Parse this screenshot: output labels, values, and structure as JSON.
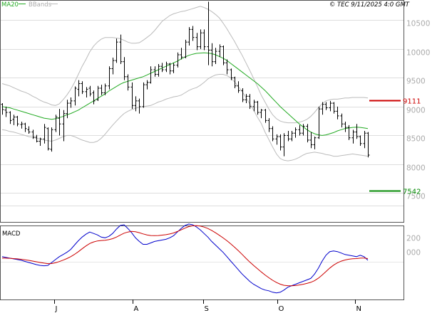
{
  "header": {
    "legend_ma": "MA20",
    "legend_bands": "BBands",
    "copyright": "© TEC 9/11/2025 4:0 GMT"
  },
  "colors": {
    "ma": "#22aa22",
    "bands": "#bbbbbb",
    "bars": "#000000",
    "resistance": "#cc0000",
    "support": "#008800",
    "macd": "#0000cc",
    "signal": "#cc0000",
    "grid": "#dddddd"
  },
  "chart_data": [
    {
      "type": "ohlc",
      "title": "",
      "x_ticks": [
        "J",
        "A",
        "S",
        "O",
        "N"
      ],
      "y_ticks": [
        {
          "v": 10500,
          "label": "10500"
        },
        {
          "v": 10000,
          "label": "10000"
        },
        {
          "v": 9500,
          "label": "9500"
        },
        {
          "v": 9000,
          "label": "9000"
        },
        {
          "v": 8500,
          "label": "8500"
        },
        {
          "v": 8000,
          "label": "8000"
        },
        {
          "v": 7500,
          "label": "7500"
        }
      ],
      "ylim": [
        7000,
        10850
      ],
      "levels": [
        {
          "name": "resistance",
          "value": 9111,
          "label": "9111"
        },
        {
          "name": "support",
          "value": 7542,
          "label": "7542"
        }
      ],
      "series_ma": [
        9000,
        8990,
        8980,
        8960,
        8940,
        8920,
        8900,
        8880,
        8860,
        8840,
        8820,
        8800,
        8790,
        8780,
        8790,
        8810,
        8830,
        8860,
        8880,
        8910,
        8940,
        8980,
        9020,
        9060,
        9100,
        9140,
        9180,
        9220,
        9270,
        9310,
        9350,
        9390,
        9420,
        9440,
        9460,
        9480,
        9500,
        9520,
        9550,
        9580,
        9610,
        9640,
        9670,
        9700,
        9730,
        9760,
        9790,
        9830,
        9860,
        9890,
        9910,
        9925,
        9930,
        9935,
        9930,
        9920,
        9900,
        9870,
        9840,
        9800,
        9750,
        9700,
        9650,
        9600,
        9550,
        9500,
        9450,
        9400,
        9340,
        9280,
        9210,
        9140,
        9070,
        9000,
        8940,
        8880,
        8820,
        8760,
        8700,
        8650,
        8600,
        8560,
        8530,
        8510,
        8500,
        8510,
        8530,
        8550,
        8580,
        8600,
        8620,
        8630,
        8640,
        8645,
        8640,
        8630,
        8620
      ],
      "series_upper": [
        9400,
        9380,
        9360,
        9330,
        9300,
        9270,
        9250,
        9220,
        9180,
        9150,
        9110,
        9080,
        9060,
        9030,
        9020,
        9050,
        9120,
        9200,
        9300,
        9420,
        9560,
        9700,
        9820,
        9950,
        10050,
        10120,
        10170,
        10200,
        10200,
        10200,
        10190,
        10180,
        10150,
        10120,
        10100,
        10100,
        10110,
        10150,
        10200,
        10250,
        10320,
        10400,
        10480,
        10530,
        10580,
        10610,
        10630,
        10650,
        10660,
        10680,
        10700,
        10720,
        10740,
        10720,
        10690,
        10650,
        10600,
        10540,
        10450,
        10350,
        10240,
        10130,
        10010,
        9890,
        9760,
        9630,
        9490,
        9350,
        9200,
        9080,
        8960,
        8860,
        8790,
        8750,
        8730,
        8720,
        8720,
        8720,
        8730,
        8750,
        8780,
        8830,
        8900,
        8980,
        9050,
        9100,
        9120,
        9130,
        9130,
        9140,
        9150,
        9150,
        9160,
        9160,
        9160,
        9160,
        9150
      ],
      "series_lower": [
        8600,
        8590,
        8570,
        8560,
        8540,
        8520,
        8500,
        8480,
        8470,
        8450,
        8440,
        8420,
        8410,
        8400,
        8420,
        8450,
        8480,
        8500,
        8500,
        8480,
        8450,
        8420,
        8400,
        8380,
        8380,
        8400,
        8450,
        8520,
        8600,
        8680,
        8750,
        8820,
        8880,
        8920,
        8950,
        8970,
        8990,
        9000,
        9010,
        9020,
        9050,
        9080,
        9100,
        9130,
        9150,
        9170,
        9180,
        9200,
        9240,
        9280,
        9310,
        9330,
        9370,
        9420,
        9480,
        9520,
        9550,
        9560,
        9560,
        9540,
        9500,
        9430,
        9350,
        9260,
        9160,
        9050,
        8940,
        8820,
        8710,
        8560,
        8430,
        8300,
        8180,
        8100,
        8070,
        8060,
        8070,
        8090,
        8120,
        8160,
        8190,
        8200,
        8210,
        8200,
        8190,
        8170,
        8160,
        8140,
        8140,
        8150,
        8160,
        8170,
        8180,
        8170,
        8160,
        8150,
        8140
      ],
      "bars": [
        [
          9040,
          9060,
          8860,
          8950
        ],
        [
          8940,
          9000,
          8820,
          8900
        ],
        [
          8900,
          8920,
          8700,
          8760
        ],
        [
          8780,
          8860,
          8680,
          8820
        ],
        [
          8820,
          8840,
          8660,
          8700
        ],
        [
          8690,
          8740,
          8620,
          8700
        ],
        [
          8700,
          8720,
          8560,
          8620
        ],
        [
          8600,
          8660,
          8530,
          8560
        ],
        [
          8560,
          8600,
          8440,
          8470
        ],
        [
          8470,
          8510,
          8380,
          8400
        ],
        [
          8400,
          8460,
          8320,
          8440
        ],
        [
          8440,
          8700,
          8360,
          8640
        ],
        [
          8620,
          8640,
          8240,
          8270
        ],
        [
          8260,
          8640,
          8220,
          8600
        ],
        [
          8600,
          8860,
          8560,
          8820
        ],
        [
          8800,
          8960,
          8500,
          8700
        ],
        [
          8700,
          8940,
          8400,
          8880
        ],
        [
          8880,
          9120,
          8800,
          9060
        ],
        [
          9060,
          9160,
          8980,
          9100
        ],
        [
          9100,
          9350,
          9020,
          9320
        ],
        [
          9300,
          9460,
          9180,
          9400
        ],
        [
          9400,
          9440,
          9220,
          9260
        ],
        [
          9260,
          9340,
          9160,
          9300
        ],
        [
          9320,
          9360,
          9180,
          9220
        ],
        [
          9240,
          9280,
          9040,
          9100
        ],
        [
          9120,
          9360,
          9100,
          9320
        ],
        [
          9320,
          9380,
          9200,
          9240
        ],
        [
          9240,
          9400,
          9200,
          9360
        ],
        [
          9360,
          9700,
          9300,
          9660
        ],
        [
          9660,
          9850,
          9560,
          9800
        ],
        [
          9800,
          10180,
          9760,
          10120
        ],
        [
          10120,
          10250,
          9740,
          9780
        ],
        [
          9780,
          9860,
          9460,
          9520
        ],
        [
          9520,
          9560,
          9280,
          9340
        ],
        [
          9340,
          9420,
          8960,
          9020
        ],
        [
          9020,
          9180,
          8920,
          9100
        ],
        [
          9100,
          9140,
          8880,
          9000
        ],
        [
          9000,
          9420,
          8980,
          9380
        ],
        [
          9380,
          9460,
          9300,
          9420
        ],
        [
          9420,
          9700,
          9400,
          9640
        ],
        [
          9640,
          9700,
          9520,
          9560
        ],
        [
          9560,
          9740,
          9520,
          9700
        ],
        [
          9700,
          9760,
          9600,
          9640
        ],
        [
          9640,
          9780,
          9600,
          9740
        ],
        [
          9740,
          9760,
          9560,
          9620
        ],
        [
          9620,
          9760,
          9580,
          9720
        ],
        [
          9720,
          9940,
          9680,
          9900
        ],
        [
          9900,
          10020,
          9820,
          9860
        ],
        [
          9860,
          10160,
          9840,
          10120
        ],
        [
          10120,
          10380,
          10060,
          10340
        ],
        [
          10340,
          10400,
          10140,
          10200
        ],
        [
          10200,
          10280,
          9980,
          10040
        ],
        [
          10040,
          10340,
          10000,
          10280
        ],
        [
          10280,
          10340,
          9980,
          10040
        ],
        [
          10040,
          10820,
          9720,
          9980
        ],
        [
          9980,
          10100,
          9700,
          9780
        ],
        [
          9780,
          10020,
          9740,
          9960
        ],
        [
          9960,
          10080,
          9860,
          10040
        ],
        [
          10040,
          10060,
          9720,
          9760
        ],
        [
          9760,
          9820,
          9560,
          9640
        ],
        [
          9640,
          9660,
          9460,
          9500
        ],
        [
          9500,
          9520,
          9320,
          9360
        ],
        [
          9360,
          9440,
          9240,
          9280
        ],
        [
          9280,
          9320,
          9080,
          9120
        ],
        [
          9120,
          9220,
          9060,
          9180
        ],
        [
          9180,
          9220,
          8960,
          9000
        ],
        [
          9000,
          9120,
          8920,
          9080
        ],
        [
          9080,
          9100,
          8860,
          8900
        ],
        [
          8900,
          8960,
          8800,
          8940
        ],
        [
          8940,
          8960,
          8720,
          8760
        ],
        [
          8760,
          8800,
          8560,
          8620
        ],
        [
          8620,
          8660,
          8400,
          8440
        ],
        [
          8440,
          8520,
          8340,
          8480
        ],
        [
          8480,
          8520,
          8240,
          8300
        ],
        [
          8300,
          8540,
          8140,
          8500
        ],
        [
          8500,
          8580,
          8400,
          8440
        ],
        [
          8440,
          8580,
          8400,
          8540
        ],
        [
          8540,
          8640,
          8460,
          8600
        ],
        [
          8600,
          8680,
          8500,
          8540
        ],
        [
          8540,
          8700,
          8500,
          8660
        ],
        [
          8660,
          8700,
          8380,
          8420
        ],
        [
          8420,
          8560,
          8280,
          8340
        ],
        [
          8340,
          8480,
          8260,
          8460
        ],
        [
          8460,
          9000,
          8440,
          8960
        ],
        [
          8960,
          9080,
          8860,
          9040
        ],
        [
          9040,
          9080,
          8940,
          8980
        ],
        [
          8980,
          9100,
          8920,
          9060
        ],
        [
          9060,
          9080,
          8880,
          8920
        ],
        [
          8920,
          9000,
          8780,
          8840
        ],
        [
          8840,
          8880,
          8640,
          8700
        ],
        [
          8700,
          8740,
          8560,
          8640
        ],
        [
          8640,
          8680,
          8420,
          8460
        ],
        [
          8460,
          8600,
          8360,
          8560
        ],
        [
          8560,
          8700,
          8440,
          8480
        ],
        [
          8480,
          8500,
          8320,
          8360
        ],
        [
          8360,
          8580,
          8280,
          8540
        ],
        [
          8540,
          8560,
          8120,
          8160
        ]
      ]
    },
    {
      "type": "line",
      "title": "MACD",
      "y_ticks": [
        {
          "v": 200,
          "label": "200"
        },
        {
          "v": 0,
          "label": "000"
        }
      ],
      "ylim": [
        -650,
        360
      ],
      "series": [
        {
          "name": "macd",
          "values": [
            -60,
            -70,
            -80,
            -90,
            -100,
            -110,
            -125,
            -140,
            -155,
            -170,
            -180,
            -185,
            -180,
            -140,
            -100,
            -60,
            -30,
            0,
            40,
            100,
            160,
            210,
            250,
            280,
            260,
            240,
            210,
            200,
            220,
            260,
            320,
            370,
            380,
            330,
            270,
            200,
            150,
            110,
            110,
            130,
            150,
            160,
            170,
            180,
            200,
            230,
            280,
            330,
            370,
            390,
            380,
            350,
            310,
            260,
            210,
            150,
            100,
            50,
            0,
            -60,
            -120,
            -180,
            -240,
            -300,
            -350,
            -400,
            -440,
            -470,
            -500,
            -520,
            -530,
            -550,
            -560,
            -550,
            -520,
            -480,
            -460,
            -440,
            -420,
            -400,
            -380,
            -360,
            -300,
            -220,
            -120,
            -40,
            10,
            20,
            10,
            -10,
            -30,
            -40,
            -50,
            -60,
            -40,
            -60,
            -110
          ]
        },
        {
          "name": "signal",
          "values": [
            -80,
            -80,
            -82,
            -86,
            -90,
            -96,
            -103,
            -111,
            -120,
            -130,
            -140,
            -149,
            -156,
            -155,
            -144,
            -127,
            -108,
            -86,
            -60,
            -28,
            9,
            49,
            88,
            122,
            143,
            157,
            163,
            167,
            175,
            188,
            210,
            238,
            264,
            280,
            288,
            284,
            271,
            254,
            240,
            232,
            230,
            232,
            237,
            243,
            253,
            267,
            287,
            310,
            334,
            355,
            366,
            368,
            362,
            348,
            329,
            302,
            270,
            235,
            199,
            160,
            117,
            71,
            23,
            -29,
            -82,
            -133,
            -180,
            -224,
            -270,
            -312,
            -350,
            -385,
            -416,
            -439,
            -455,
            -460,
            -461,
            -458,
            -450,
            -440,
            -428,
            -414,
            -391,
            -357,
            -313,
            -266,
            -217,
            -176,
            -144,
            -121,
            -106,
            -95,
            -89,
            -86,
            -80,
            -78,
            -86
          ]
        }
      ]
    }
  ]
}
